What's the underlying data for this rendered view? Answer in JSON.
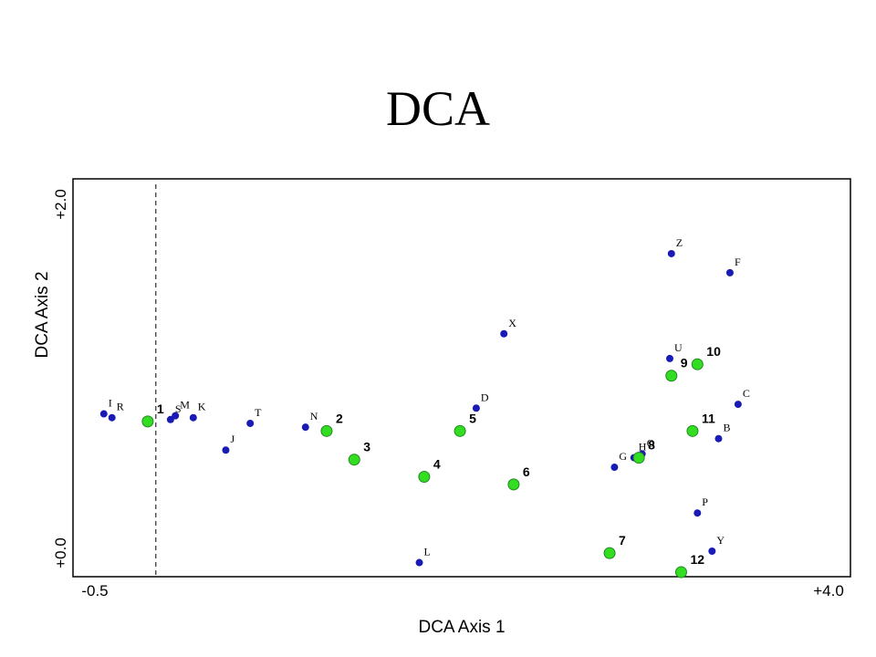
{
  "chart_data": {
    "type": "scatter",
    "title": "DCA",
    "xlabel": "DCA Axis 1",
    "ylabel": "DCA Axis 2",
    "xlim": [
      -0.5,
      4.0
    ],
    "ylim": [
      0.0,
      2.0
    ],
    "x_tick_labels": [
      "-0.5",
      "+4.0"
    ],
    "y_tick_labels": [
      "+0.0",
      "+2.0"
    ],
    "grid": false,
    "reference_line_x": -0.17,
    "colors": {
      "species": "#1a1ab4",
      "samples": "#33dd22",
      "sample_outline": "#228822"
    },
    "species": [
      {
        "label": "I",
        "x": -0.49,
        "y": 0.83
      },
      {
        "label": "R",
        "x": -0.44,
        "y": 0.81
      },
      {
        "label": "S",
        "x": -0.08,
        "y": 0.8
      },
      {
        "label": "M",
        "x": -0.05,
        "y": 0.82
      },
      {
        "label": "K",
        "x": 0.06,
        "y": 0.81
      },
      {
        "label": "J",
        "x": 0.26,
        "y": 0.64
      },
      {
        "label": "T",
        "x": 0.41,
        "y": 0.78
      },
      {
        "label": "N",
        "x": 0.75,
        "y": 0.76
      },
      {
        "label": "L",
        "x": 1.45,
        "y": 0.05
      },
      {
        "label": "D",
        "x": 1.8,
        "y": 0.86
      },
      {
        "label": "X",
        "x": 1.97,
        "y": 1.25
      },
      {
        "label": "G",
        "x": 2.65,
        "y": 0.55
      },
      {
        "label": "H",
        "x": 2.77,
        "y": 0.6
      },
      {
        "label": "O",
        "x": 2.82,
        "y": 0.62
      },
      {
        "label": "Z",
        "x": 3.0,
        "y": 1.67
      },
      {
        "label": "U",
        "x": 2.99,
        "y": 1.12
      },
      {
        "label": "F",
        "x": 3.36,
        "y": 1.57
      },
      {
        "label": "C",
        "x": 3.41,
        "y": 0.88
      },
      {
        "label": "B",
        "x": 3.29,
        "y": 0.7
      },
      {
        "label": "P",
        "x": 3.16,
        "y": 0.31
      },
      {
        "label": "Y",
        "x": 3.25,
        "y": 0.11
      }
    ],
    "samples": [
      {
        "label": "1",
        "x": -0.22,
        "y": 0.79
      },
      {
        "label": "2",
        "x": 0.88,
        "y": 0.74
      },
      {
        "label": "3",
        "x": 1.05,
        "y": 0.59
      },
      {
        "label": "4",
        "x": 1.48,
        "y": 0.5
      },
      {
        "label": "5",
        "x": 1.7,
        "y": 0.74
      },
      {
        "label": "6",
        "x": 2.03,
        "y": 0.46
      },
      {
        "label": "7",
        "x": 2.62,
        "y": 0.1
      },
      {
        "label": "8",
        "x": 2.8,
        "y": 0.6
      },
      {
        "label": "9",
        "x": 3.0,
        "y": 1.03
      },
      {
        "label": "10",
        "x": 3.16,
        "y": 1.09
      },
      {
        "label": "11",
        "x": 3.13,
        "y": 0.74
      },
      {
        "label": "12",
        "x": 3.06,
        "y": 0.0
      }
    ]
  }
}
